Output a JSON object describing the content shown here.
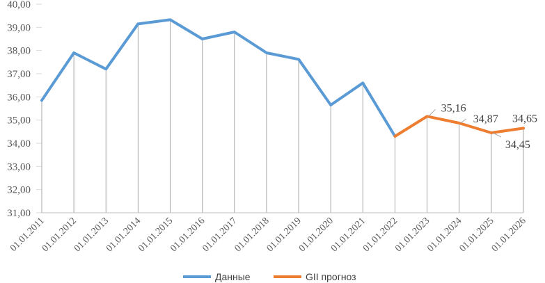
{
  "chart_data": {
    "type": "line",
    "categories": [
      "01.01.2011",
      "01.01.2012",
      "01.01.2013",
      "01.01.2014",
      "01.01.2015",
      "01.01.2016",
      "01.01.2017",
      "01.01.2018",
      "01.01.2019",
      "01.01.2020",
      "01.01.2021",
      "01.01.2022",
      "01.01.2023",
      "01.01.2024",
      "01.01.2025",
      "01.01.2026"
    ],
    "ylim": [
      31,
      40
    ],
    "yticks": [
      "31,00",
      "32,00",
      "33,00",
      "34,00",
      "35,00",
      "36,00",
      "37,00",
      "38,00",
      "39,00",
      "40,00"
    ],
    "grid": "vertical drop lines",
    "legend": "bottom",
    "series": [
      {
        "name": "Данные",
        "color": "#5B9BD5",
        "values": [
          35.85,
          37.9,
          37.2,
          39.15,
          39.33,
          38.5,
          38.8,
          37.9,
          37.62,
          35.65,
          36.6,
          34.3,
          null,
          null,
          null,
          null
        ]
      },
      {
        "name": "GII прогноз",
        "color": "#ED7D31",
        "values": [
          null,
          null,
          null,
          null,
          null,
          null,
          null,
          null,
          null,
          null,
          null,
          34.3,
          35.16,
          34.87,
          34.45,
          34.65
        ]
      }
    ],
    "data_labels": [
      {
        "category": "01.01.2023",
        "text": "35,16"
      },
      {
        "category": "01.01.2024",
        "text": "34,87"
      },
      {
        "category": "01.01.2025",
        "text": "34,45"
      },
      {
        "category": "01.01.2026",
        "text": "34,65"
      }
    ]
  }
}
